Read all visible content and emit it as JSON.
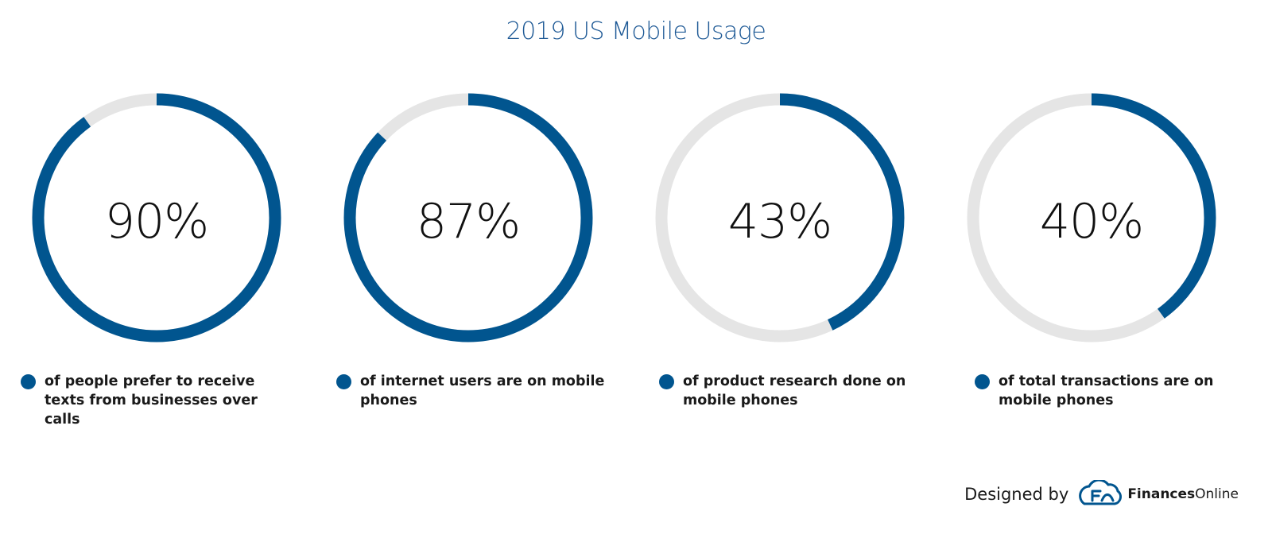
{
  "chart_data": {
    "type": "donut",
    "title": "2019 US Mobile Usage",
    "items": [
      {
        "label": "90%",
        "value": 90,
        "caption": "of people prefer to receive texts from businesses over calls"
      },
      {
        "label": "87%",
        "value": 87,
        "caption": "of internet users are on mobile phones"
      },
      {
        "label": "43%",
        "value": 43,
        "caption": "of product research done on mobile phones"
      },
      {
        "label": "40%",
        "value": 40,
        "caption": "of total transactions are on mobile phones"
      }
    ]
  },
  "footer": {
    "designed_by": "Designed by",
    "brand_bold": "Finances",
    "brand_regular": "Online"
  },
  "colors": {
    "accent": "#01558f",
    "track": "#e5e5e5",
    "title": "#1f5a96"
  },
  "icons": {
    "logo": "cloud-f-logo-icon"
  }
}
